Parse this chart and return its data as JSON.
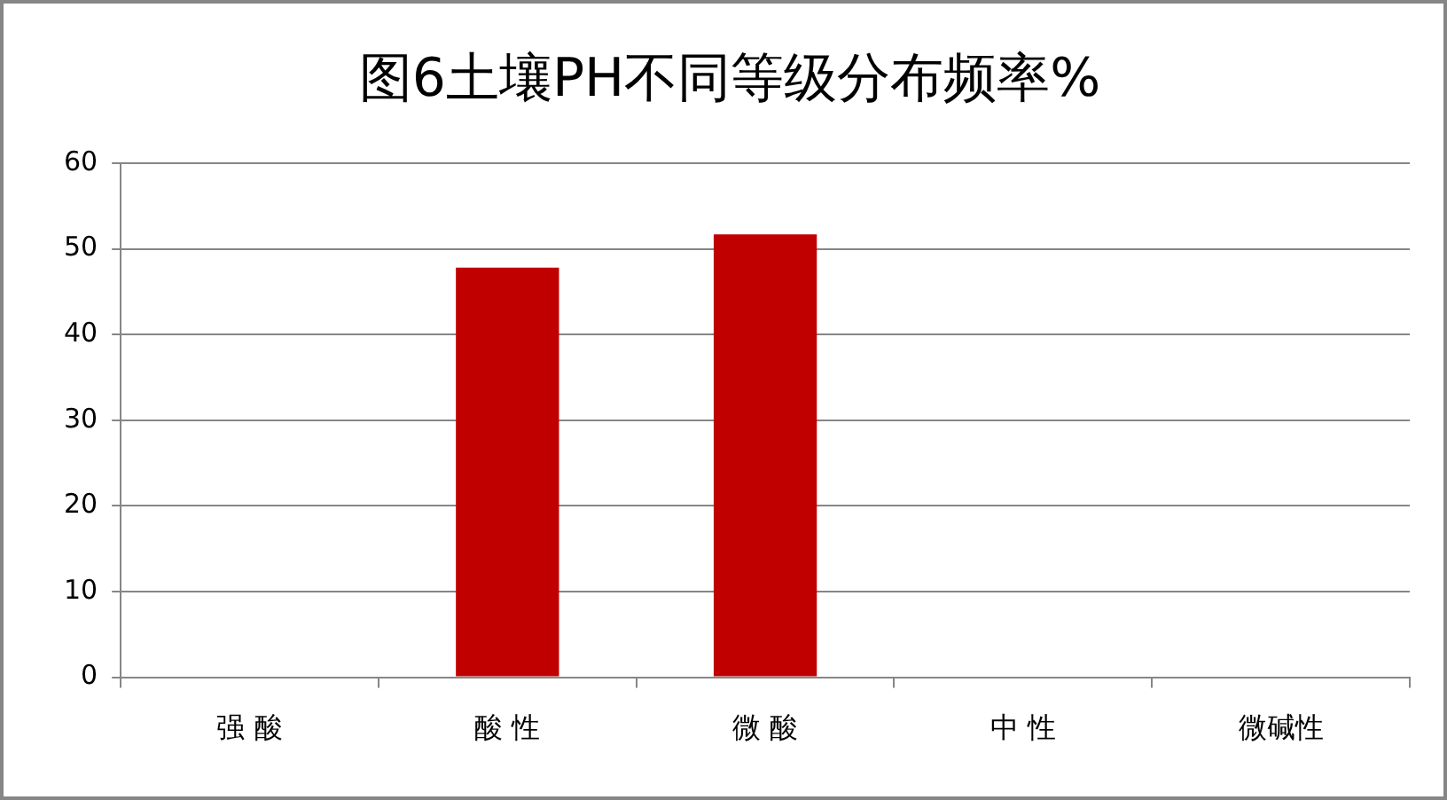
{
  "chart_data": {
    "type": "bar",
    "title": "图6土壤PH不同等级分布频率%",
    "categories": [
      "强 酸",
      "酸 性",
      "微 酸",
      "中 性",
      "微碱性"
    ],
    "values": [
      0,
      47.8,
      51.7,
      0,
      0
    ],
    "color": "#c00000",
    "ylim": [
      0,
      60
    ],
    "yticks": [
      0,
      10,
      20,
      30,
      40,
      50,
      60
    ],
    "grid": "y",
    "legend": false
  }
}
